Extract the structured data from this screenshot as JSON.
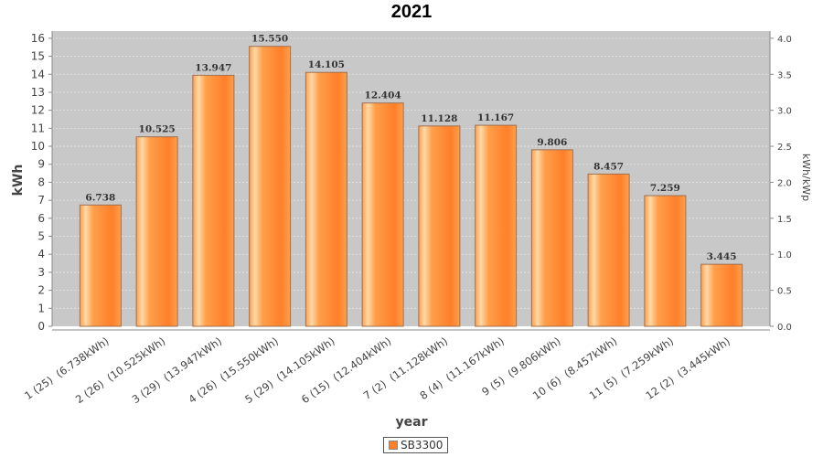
{
  "chart_data": {
    "type": "bar",
    "title": "2021",
    "xlabel": "year",
    "ylabel": "kWh",
    "y2label": "kWh/kWp",
    "ylim": [
      0,
      16.4
    ],
    "y2lim": [
      0,
      4.1
    ],
    "yticks": [
      0,
      1,
      2,
      3,
      4,
      5,
      6,
      7,
      8,
      9,
      10,
      11,
      12,
      13,
      14,
      15,
      16
    ],
    "y2ticks": [
      "0.0",
      "0.5",
      "1.0",
      "1.5",
      "2.0",
      "2.5",
      "3.0",
      "3.5",
      "4.0"
    ],
    "categories": [
      "1 (25)  (6.738kWh)",
      "2 (26)  (10.525kWh)",
      "3 (29)  (13.947kWh)",
      "4 (26)  (15.550kWh)",
      "5 (29)  (14.105kWh)",
      "6 (15)  (12.404kWh)",
      "7 (2)  (11.128kWh)",
      "8 (4)  (11.167kWh)",
      "9 (5)  (9.806kWh)",
      "10 (6)  (8.457kWh)",
      "11 (5)  (7.259kWh)",
      "12 (2)  (3.445kWh)"
    ],
    "series": [
      {
        "name": "SB3300",
        "values": [
          6.738,
          10.525,
          13.947,
          15.55,
          14.105,
          12.404,
          11.128,
          11.167,
          9.806,
          8.457,
          7.259,
          3.445
        ],
        "labels": [
          "6.738",
          "10.525",
          "13.947",
          "15.550",
          "14.105",
          "12.404",
          "11.128",
          "11.167",
          "9.806",
          "8.457",
          "7.259",
          "3.445"
        ]
      }
    ],
    "colors": {
      "bar_light": "#FFD9A8",
      "bar_mid": "#FF9F4A",
      "bar_dark": "#FF7F2A",
      "bar_edge": "#A07050",
      "plot_bg": "#C8C8C8",
      "grid": "#E6E6E6"
    },
    "grid": true,
    "legend": "bottom-center"
  }
}
